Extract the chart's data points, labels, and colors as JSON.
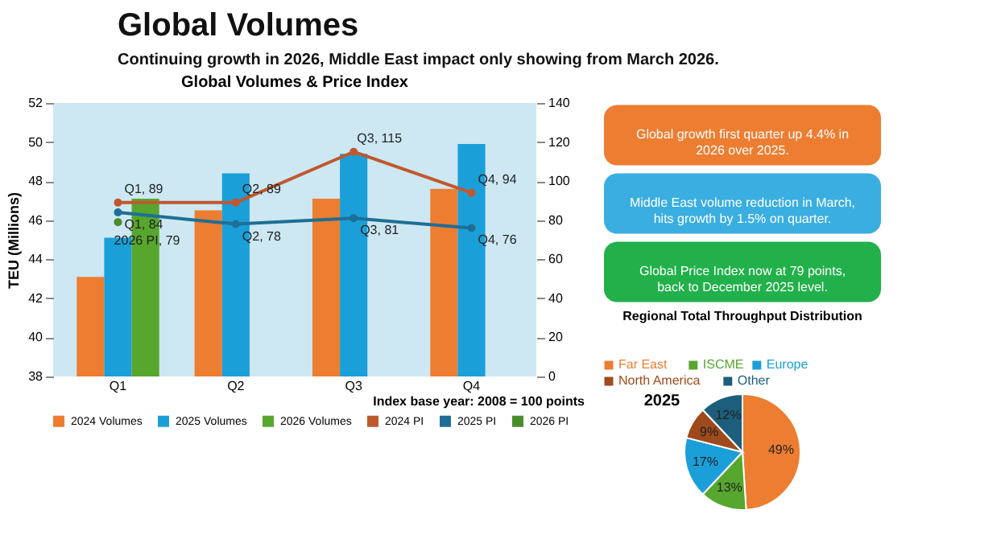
{
  "chart_data": [
    {
      "type": "other",
      "title": "Global Volumes",
      "subtitle": "Continuing growth in 2026, Middle East impact only showing from March 2026."
    },
    {
      "type": "bar",
      "title": "Global Volumes & Price Index",
      "ylabel": "TEU (Millions)",
      "categories": [
        "Q1",
        "Q2",
        "Q3",
        "Q4"
      ],
      "series": [
        {
          "name": "2024 Volumes",
          "type": "bar",
          "color": "#ed7d31",
          "values": [
            43.1,
            46.5,
            47.1,
            47.6
          ]
        },
        {
          "name": "2025 Volumes",
          "type": "bar",
          "color": "#1b9fd8",
          "values": [
            45.1,
            48.4,
            49.4,
            49.9
          ]
        },
        {
          "name": "2026 Volumes",
          "type": "bar",
          "color": "#57a62e",
          "values": [
            47.1,
            null,
            null,
            null
          ]
        },
        {
          "name": "2024 PI",
          "type": "line",
          "axis": "y2",
          "color": "#c0582e",
          "values": [
            89,
            89,
            115,
            94
          ],
          "value_labels": [
            "Q1, 89",
            "Q2, 89",
            "Q3, 115",
            "Q4, 94"
          ]
        },
        {
          "name": "2025 PI",
          "type": "line",
          "axis": "y2",
          "color": "#1f6e96",
          "values": [
            84,
            78,
            81,
            76
          ],
          "value_labels": [
            "Q1, 84",
            "Q2, 78",
            "Q3, 81",
            "Q4, 76"
          ]
        },
        {
          "name": "2026 PI",
          "type": "line",
          "axis": "y2",
          "color": "#4a8c2a",
          "values": [
            79,
            null,
            null,
            null
          ],
          "value_labels": [
            "2026 PI, 79",
            null,
            null,
            null
          ]
        }
      ],
      "ylim": [
        38,
        52
      ],
      "yticks": [
        38,
        40,
        42,
        44,
        46,
        48,
        50,
        52
      ],
      "y2lim": [
        0,
        140
      ],
      "y2ticks": [
        0,
        20,
        40,
        60,
        80,
        100,
        120,
        140
      ],
      "marker": "circle",
      "legend": "bottom",
      "grid": false,
      "annotations": [
        "Index base year: 2008 = 100 points"
      ]
    },
    {
      "type": "other",
      "annotations": [
        "Global growth first quarter up 4.4% in 2026 over 2025.",
        "Middle East volume reduction in March, hits growth by 1.5% on quarter.",
        "Global Price Index now at 79 points, back to December 2025 level."
      ],
      "colors": [
        "#ed7d31",
        "#3aaee0",
        "#22b04b"
      ]
    },
    {
      "type": "pie",
      "title": "Regional Total Throughput Distribution",
      "categories": [
        "Far East",
        "ISCME",
        "Europe",
        "North America",
        "Other"
      ],
      "values": [
        49,
        13,
        17,
        9,
        12
      ],
      "colors": [
        "#ed7d31",
        "#57a62e",
        "#1b9fd8",
        "#9e4a1c",
        "#1d5e7c"
      ],
      "value_labels": [
        "49%",
        "13%",
        "17%",
        "9%",
        "12%"
      ],
      "legend": "top",
      "annotations": [
        "2025"
      ]
    }
  ]
}
